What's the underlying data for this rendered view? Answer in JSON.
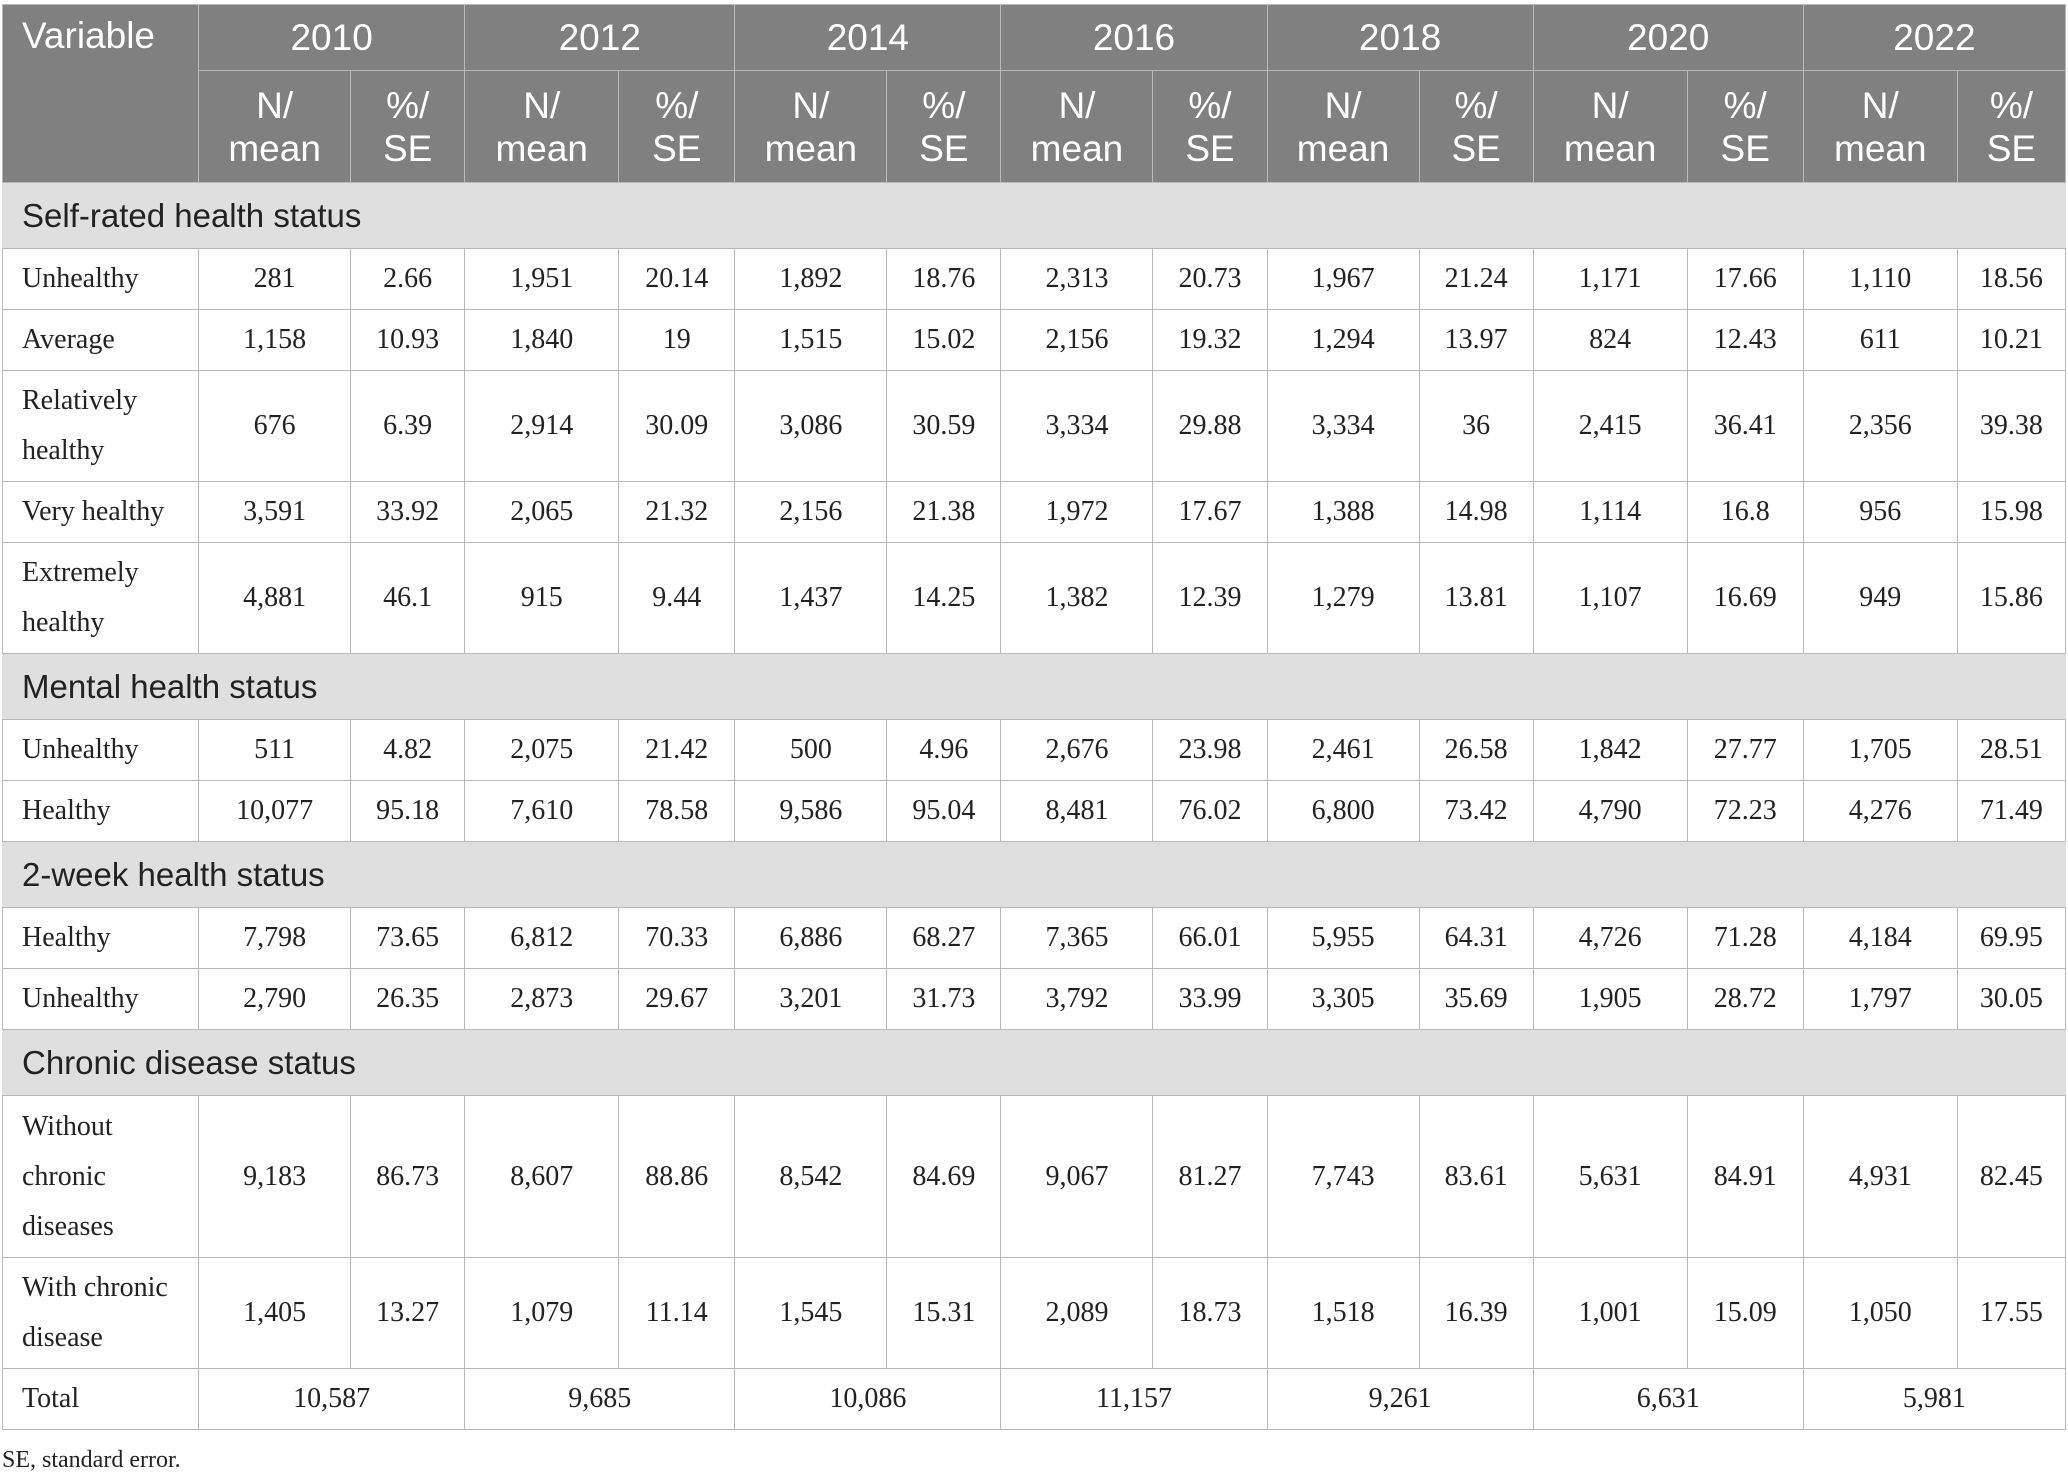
{
  "table": {
    "variable_header": "Variable",
    "years": [
      "2010",
      "2012",
      "2014",
      "2016",
      "2018",
      "2020",
      "2022"
    ],
    "sub_header_n": [
      "N/",
      "mean"
    ],
    "sub_header_pct": [
      "%/",
      "SE"
    ],
    "sections": [
      {
        "title": "Self-rated health status",
        "rows": [
          {
            "label": [
              "Unhealthy"
            ],
            "values": [
              "281",
              "2.66",
              "1,951",
              "20.14",
              "1,892",
              "18.76",
              "2,313",
              "20.73",
              "1,967",
              "21.24",
              "1,171",
              "17.66",
              "1,110",
              "18.56"
            ]
          },
          {
            "label": [
              "Average"
            ],
            "values": [
              "1,158",
              "10.93",
              "1,840",
              "19",
              "1,515",
              "15.02",
              "2,156",
              "19.32",
              "1,294",
              "13.97",
              "824",
              "12.43",
              "611",
              "10.21"
            ]
          },
          {
            "label": [
              "Relatively",
              "healthy"
            ],
            "values": [
              "676",
              "6.39",
              "2,914",
              "30.09",
              "3,086",
              "30.59",
              "3,334",
              "29.88",
              "3,334",
              "36",
              "2,415",
              "36.41",
              "2,356",
              "39.38"
            ]
          },
          {
            "label": [
              "Very healthy"
            ],
            "values": [
              "3,591",
              "33.92",
              "2,065",
              "21.32",
              "2,156",
              "21.38",
              "1,972",
              "17.67",
              "1,388",
              "14.98",
              "1,114",
              "16.8",
              "956",
              "15.98"
            ]
          },
          {
            "label": [
              "Extremely",
              "healthy"
            ],
            "values": [
              "4,881",
              "46.1",
              "915",
              "9.44",
              "1,437",
              "14.25",
              "1,382",
              "12.39",
              "1,279",
              "13.81",
              "1,107",
              "16.69",
              "949",
              "15.86"
            ]
          }
        ]
      },
      {
        "title": "Mental health status",
        "rows": [
          {
            "label": [
              "Unhealthy"
            ],
            "values": [
              "511",
              "4.82",
              "2,075",
              "21.42",
              "500",
              "4.96",
              "2,676",
              "23.98",
              "2,461",
              "26.58",
              "1,842",
              "27.77",
              "1,705",
              "28.51"
            ]
          },
          {
            "label": [
              "Healthy"
            ],
            "values": [
              "10,077",
              "95.18",
              "7,610",
              "78.58",
              "9,586",
              "95.04",
              "8,481",
              "76.02",
              "6,800",
              "73.42",
              "4,790",
              "72.23",
              "4,276",
              "71.49"
            ]
          }
        ]
      },
      {
        "title": "2-week health status",
        "rows": [
          {
            "label": [
              "Healthy"
            ],
            "values": [
              "7,798",
              "73.65",
              "6,812",
              "70.33",
              "6,886",
              "68.27",
              "7,365",
              "66.01",
              "5,955",
              "64.31",
              "4,726",
              "71.28",
              "4,184",
              "69.95"
            ]
          },
          {
            "label": [
              "Unhealthy"
            ],
            "values": [
              "2,790",
              "26.35",
              "2,873",
              "29.67",
              "3,201",
              "31.73",
              "3,792",
              "33.99",
              "3,305",
              "35.69",
              "1,905",
              "28.72",
              "1,797",
              "30.05"
            ]
          }
        ]
      },
      {
        "title": "Chronic disease status",
        "rows": [
          {
            "label": [
              "Without",
              "chronic",
              "diseases"
            ],
            "values": [
              "9,183",
              "86.73",
              "8,607",
              "88.86",
              "8,542",
              "84.69",
              "9,067",
              "81.27",
              "7,743",
              "83.61",
              "5,631",
              "84.91",
              "4,931",
              "82.45"
            ]
          },
          {
            "label": [
              "With chronic",
              "disease"
            ],
            "values": [
              "1,405",
              "13.27",
              "1,079",
              "11.14",
              "1,545",
              "15.31",
              "2,089",
              "18.73",
              "1,518",
              "16.39",
              "1,001",
              "15.09",
              "1,050",
              "17.55"
            ]
          }
        ]
      }
    ],
    "total": {
      "label": "Total",
      "values": [
        "10,587",
        "9,685",
        "10,086",
        "11,157",
        "9,261",
        "6,631",
        "5,981"
      ]
    }
  },
  "footnote": "SE, standard error."
}
